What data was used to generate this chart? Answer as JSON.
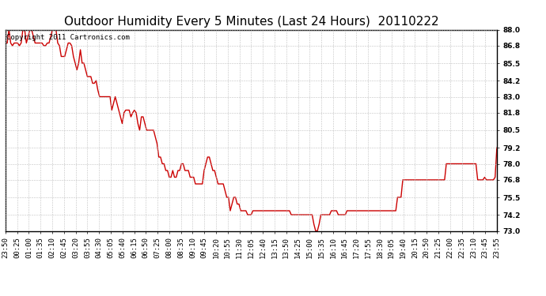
{
  "title": "Outdoor Humidity Every 5 Minutes (Last 24 Hours)  20110222",
  "copyright_text": "Copyright 2011 Cartronics.com",
  "line_color": "#cc0000",
  "background_color": "#ffffff",
  "plot_bg_color": "#ffffff",
  "grid_color": "#bbbbbb",
  "border_color": "#000000",
  "ylim": [
    73.0,
    88.0
  ],
  "yticks": [
    73.0,
    74.2,
    75.5,
    76.8,
    78.0,
    79.2,
    80.5,
    81.8,
    83.0,
    84.2,
    85.5,
    86.8,
    88.0
  ],
  "xtick_labels": [
    "23:50",
    "00:25",
    "01:00",
    "01:35",
    "02:10",
    "02:45",
    "03:20",
    "03:55",
    "04:30",
    "05:05",
    "05:40",
    "06:15",
    "06:50",
    "07:25",
    "08:00",
    "08:35",
    "09:10",
    "09:45",
    "10:20",
    "10:55",
    "11:30",
    "12:05",
    "12:40",
    "13:15",
    "13:50",
    "14:25",
    "15:00",
    "15:35",
    "16:10",
    "16:45",
    "17:20",
    "17:55",
    "18:30",
    "19:05",
    "19:40",
    "20:15",
    "20:50",
    "21:25",
    "22:00",
    "22:35",
    "23:10",
    "23:45",
    "23:55"
  ],
  "humidity_values": [
    87.0,
    87.0,
    88.0,
    87.0,
    86.8,
    87.0,
    87.0,
    87.0,
    86.8,
    87.0,
    88.0,
    88.0,
    87.0,
    87.5,
    88.0,
    88.0,
    87.5,
    87.0,
    87.0,
    87.0,
    87.0,
    87.0,
    86.8,
    86.8,
    87.0,
    87.0,
    87.5,
    88.0,
    88.0,
    88.0,
    87.0,
    86.8,
    86.0,
    86.0,
    86.0,
    86.5,
    87.0,
    87.0,
    86.8,
    86.0,
    85.5,
    85.0,
    85.5,
    86.5,
    85.5,
    85.5,
    85.0,
    84.5,
    84.5,
    84.5,
    84.0,
    84.0,
    84.2,
    83.5,
    83.0,
    83.0,
    83.0,
    83.0,
    83.0,
    83.0,
    83.0,
    82.0,
    82.5,
    83.0,
    82.5,
    82.0,
    81.5,
    81.0,
    81.8,
    82.0,
    82.0,
    82.0,
    81.5,
    81.8,
    82.0,
    81.8,
    81.0,
    80.5,
    81.5,
    81.5,
    81.0,
    80.5,
    80.5,
    80.5,
    80.5,
    80.5,
    80.0,
    79.5,
    78.5,
    78.5,
    78.0,
    78.0,
    77.5,
    77.5,
    77.0,
    77.0,
    77.5,
    77.0,
    77.0,
    77.5,
    77.5,
    78.0,
    78.0,
    77.5,
    77.5,
    77.5,
    77.0,
    77.0,
    77.0,
    76.5,
    76.5,
    76.5,
    76.5,
    76.5,
    77.5,
    78.0,
    78.5,
    78.5,
    78.0,
    77.5,
    77.5,
    77.0,
    76.5,
    76.5,
    76.5,
    76.5,
    76.0,
    75.5,
    75.5,
    74.5,
    75.0,
    75.5,
    75.5,
    75.0,
    75.0,
    74.5,
    74.5,
    74.5,
    74.5,
    74.2,
    74.2,
    74.2,
    74.5,
    74.5,
    74.5,
    74.5,
    74.5,
    74.5,
    74.5,
    74.5,
    74.5,
    74.5,
    74.5,
    74.5,
    74.5,
    74.5,
    74.5,
    74.5,
    74.5,
    74.5,
    74.5,
    74.5,
    74.5,
    74.5,
    74.2,
    74.2,
    74.2,
    74.2,
    74.2,
    74.2,
    74.2,
    74.2,
    74.2,
    74.2,
    74.2,
    74.2,
    74.2,
    73.5,
    73.0,
    73.0,
    73.5,
    74.2,
    74.2,
    74.2,
    74.2,
    74.2,
    74.2,
    74.5,
    74.5,
    74.5,
    74.5,
    74.2,
    74.2,
    74.2,
    74.2,
    74.2,
    74.5,
    74.5,
    74.5,
    74.5,
    74.5,
    74.5,
    74.5,
    74.5,
    74.5,
    74.5,
    74.5,
    74.5,
    74.5,
    74.5,
    74.5,
    74.5,
    74.5,
    74.5,
    74.5,
    74.5,
    74.5,
    74.5,
    74.5,
    74.5,
    74.5,
    74.5,
    74.5,
    74.5,
    74.5,
    75.5,
    75.5,
    75.5,
    76.8,
    76.8,
    76.8,
    76.8,
    76.8,
    76.8,
    76.8,
    76.8,
    76.8,
    76.8,
    76.8,
    76.8,
    76.8,
    76.8,
    76.8,
    76.8,
    76.8,
    76.8,
    76.8,
    76.8,
    76.8,
    76.8,
    76.8,
    76.8,
    76.8,
    78.0,
    78.0,
    78.0,
    78.0,
    78.0,
    78.0,
    78.0,
    78.0,
    78.0,
    78.0,
    78.0,
    78.0,
    78.0,
    78.0,
    78.0,
    78.0,
    78.0,
    78.0,
    76.8,
    76.8,
    76.8,
    76.8,
    77.0,
    76.8,
    76.8,
    76.8,
    76.8,
    76.8,
    77.0,
    79.2
  ],
  "title_fontsize": 11,
  "tick_fontsize": 6.5,
  "copyright_fontsize": 6.5,
  "line_width": 1.0
}
